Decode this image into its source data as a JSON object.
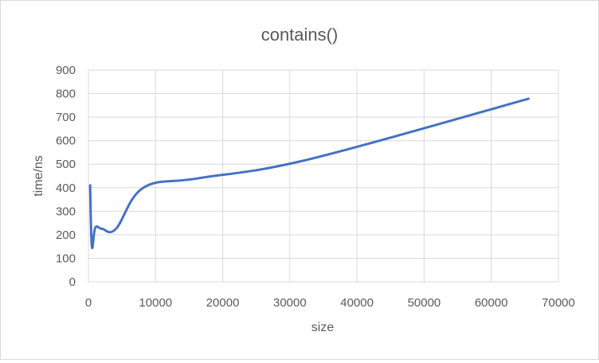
{
  "chart_data": {
    "type": "line",
    "title": "contains()",
    "xlabel": "size",
    "ylabel": "time/ns",
    "xlim": [
      0,
      70000
    ],
    "ylim": [
      0,
      900
    ],
    "x_ticks": [
      0,
      10000,
      20000,
      30000,
      40000,
      50000,
      60000,
      70000
    ],
    "y_ticks": [
      0,
      100,
      200,
      300,
      400,
      500,
      600,
      700,
      800,
      900
    ],
    "grid": true,
    "legend": "none",
    "series": [
      {
        "color": "#4472c4",
        "x": [
          256,
          512,
          1024,
          2048,
          4096,
          8192,
          16384,
          32768,
          65536
        ],
        "y": [
          410,
          150,
          230,
          225,
          225,
          400,
          440,
          520,
          778
        ]
      }
    ]
  }
}
